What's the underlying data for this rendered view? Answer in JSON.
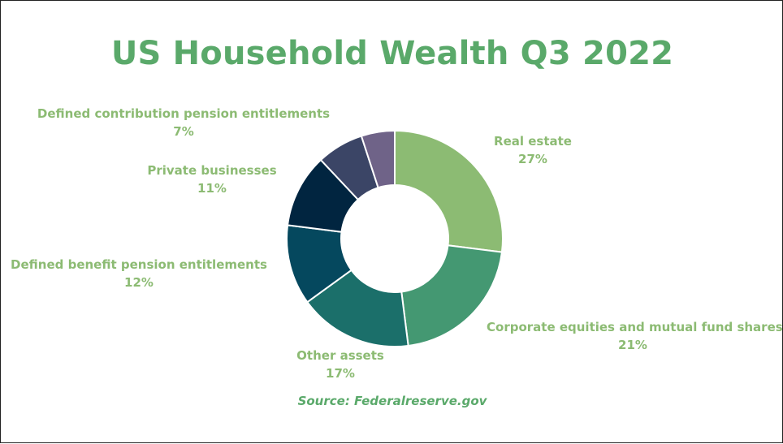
{
  "chart_data": {
    "type": "pie",
    "title": "US Household Wealth Q3 2022",
    "source": "Source: Federalreserve.gov",
    "slices": [
      {
        "label": "Real estate",
        "value": 27,
        "display": "27%",
        "color": "#8cbb73"
      },
      {
        "label": "Corporate equities and mutual fund shares",
        "value": 21,
        "display": "21%",
        "color": "#449872"
      },
      {
        "label": "Other assets",
        "value": 17,
        "display": "17%",
        "color": "#1b6f6a"
      },
      {
        "label": "Defined benefit pension entitlements",
        "value": 12,
        "display": "12%",
        "color": "#05485e"
      },
      {
        "label": "Private businesses",
        "value": 11,
        "display": "11%",
        "color": "#012540"
      },
      {
        "label": "Defined contribution pension entitlements",
        "value": 7,
        "display": "7%",
        "color": "#3b4566"
      },
      {
        "label": "",
        "value": 5,
        "display": "",
        "color": "#6f6388"
      }
    ]
  }
}
